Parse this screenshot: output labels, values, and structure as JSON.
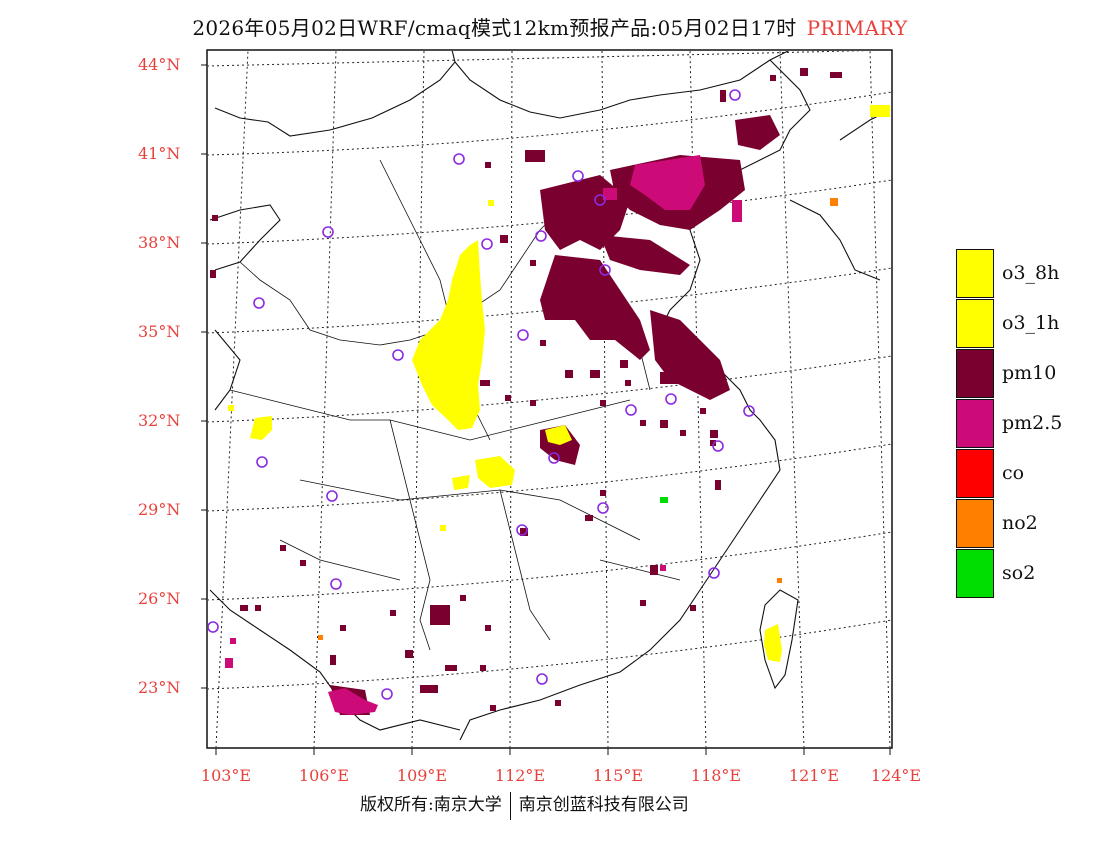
{
  "title": {
    "main": "2026年05月02日WRF/cmaq模式12km预报产品:05月02日17时",
    "pollutant": "PRIMARY"
  },
  "axes": {
    "latitude_labels": [
      "44°N",
      "41°N",
      "38°N",
      "35°N",
      "32°N",
      "29°N",
      "26°N",
      "23°N"
    ],
    "longitude_labels": [
      "103°E",
      "106°E",
      "109°E",
      "112°E",
      "115°E",
      "118°E",
      "121°E",
      "124°E"
    ]
  },
  "legend": {
    "items": [
      {
        "label": "o3_8h",
        "color": "#ffff00"
      },
      {
        "label": "o3_1h",
        "color": "#ffff00"
      },
      {
        "label": "pm10",
        "color": "#7a0030"
      },
      {
        "label": "pm2.5",
        "color": "#cc0a78"
      },
      {
        "label": "co",
        "color": "#ff0000"
      },
      {
        "label": "no2",
        "color": "#ff7f00"
      },
      {
        "label": "so2",
        "color": "#00dd00"
      }
    ]
  },
  "copyright": {
    "left": "版权所有:南京大学",
    "right": "南京创蓝科技有限公司"
  },
  "colors": {
    "accent": "#e8413c",
    "pm10": "#7a0030",
    "pm25": "#cc0a78",
    "o3": "#ffff00",
    "no2": "#ff7f00",
    "so2": "#00dd00",
    "station": "#8a2be2"
  }
}
